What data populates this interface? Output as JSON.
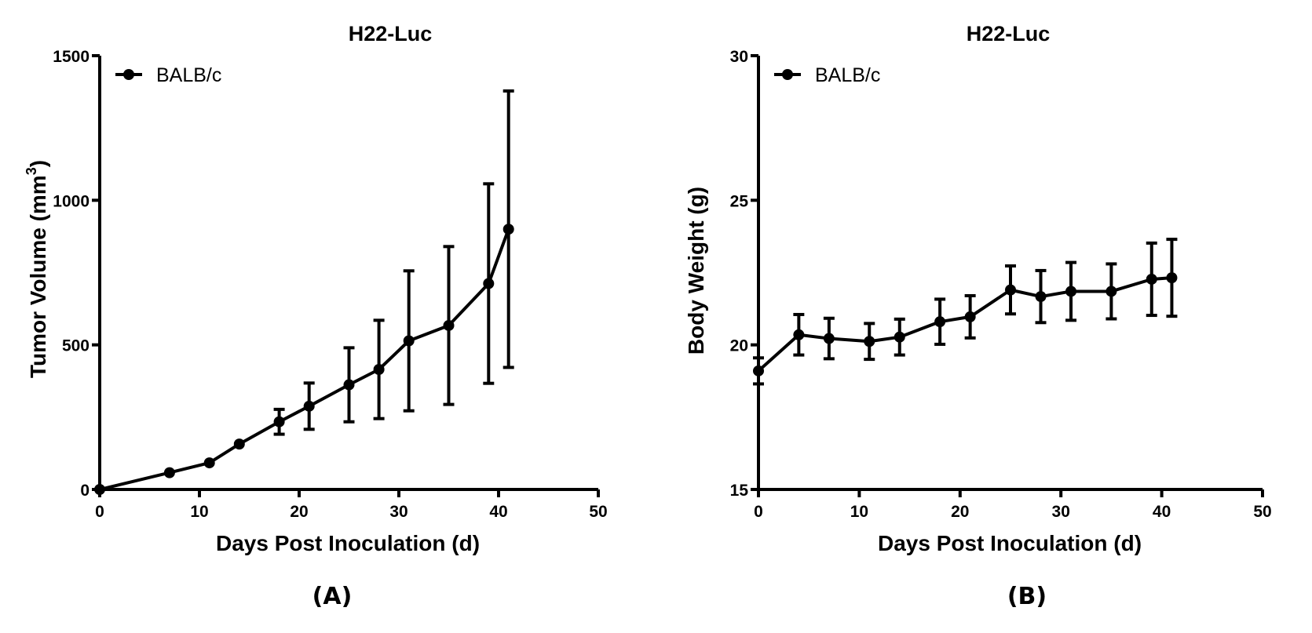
{
  "chart_data": [
    {
      "type": "line",
      "panel_label": "(A)",
      "title": "H22-Luc",
      "xlabel": "Days Post Inoculation (d)",
      "ylabel": "Tumor Volume (mm",
      "ylabel_superscript": "3",
      "ylabel_suffix": ")",
      "xlim": [
        0,
        50
      ],
      "ylim": [
        0,
        1500
      ],
      "xticks": [
        0,
        10,
        20,
        30,
        40,
        50
      ],
      "yticks": [
        0,
        500,
        1000,
        1500
      ],
      "legend_position": "top-left",
      "series": [
        {
          "name": "BALB/c",
          "x": [
            0,
            7,
            11,
            14,
            18,
            21,
            25,
            28,
            31,
            35,
            39,
            41
          ],
          "y": [
            0,
            58,
            92,
            157,
            234,
            288,
            362,
            415,
            514,
            567,
            712,
            900
          ],
          "err": [
            0,
            0,
            0,
            0,
            43,
            80,
            128,
            170,
            242,
            273,
            345,
            478
          ]
        }
      ]
    },
    {
      "type": "line",
      "panel_label": "(B)",
      "title": "H22-Luc",
      "xlabel": "Days Post Inoculation (d)",
      "ylabel": "Body Weight (g)",
      "xlim": [
        0,
        50
      ],
      "ylim": [
        15,
        30
      ],
      "xticks": [
        0,
        10,
        20,
        30,
        40,
        50
      ],
      "yticks": [
        15,
        20,
        25,
        30
      ],
      "legend_position": "top-left",
      "series": [
        {
          "name": "BALB/c",
          "x": [
            0,
            4,
            7,
            11,
            14,
            18,
            21,
            25,
            28,
            31,
            35,
            39,
            41
          ],
          "y": [
            19.1,
            20.35,
            20.22,
            20.12,
            20.27,
            20.8,
            20.97,
            21.9,
            21.67,
            21.85,
            21.85,
            22.27,
            22.32
          ],
          "err": [
            0.45,
            0.7,
            0.7,
            0.62,
            0.62,
            0.78,
            0.73,
            0.83,
            0.9,
            1.0,
            0.95,
            1.25,
            1.33
          ]
        }
      ]
    }
  ]
}
